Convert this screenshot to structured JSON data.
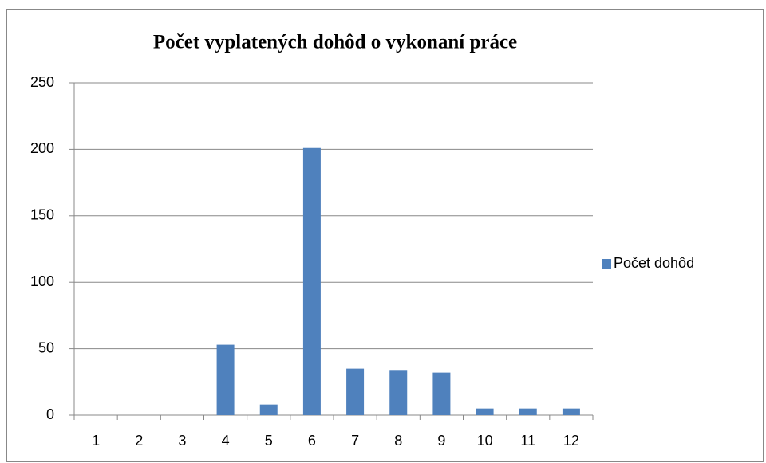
{
  "chart_data": {
    "type": "bar",
    "title": "Počet vyplatených dohôd o vykonaní práce",
    "categories": [
      "1",
      "2",
      "3",
      "4",
      "5",
      "6",
      "7",
      "8",
      "9",
      "10",
      "11",
      "12"
    ],
    "series": [
      {
        "name": "Počet dohôd",
        "color": "#4f81bd",
        "values": [
          0,
          0,
          0,
          53,
          8,
          201,
          35,
          34,
          32,
          5,
          5,
          5
        ]
      }
    ],
    "ylim": [
      0,
      250
    ],
    "yticks": [
      0,
      50,
      100,
      150,
      200,
      250
    ],
    "grid": true,
    "legend": "right"
  }
}
